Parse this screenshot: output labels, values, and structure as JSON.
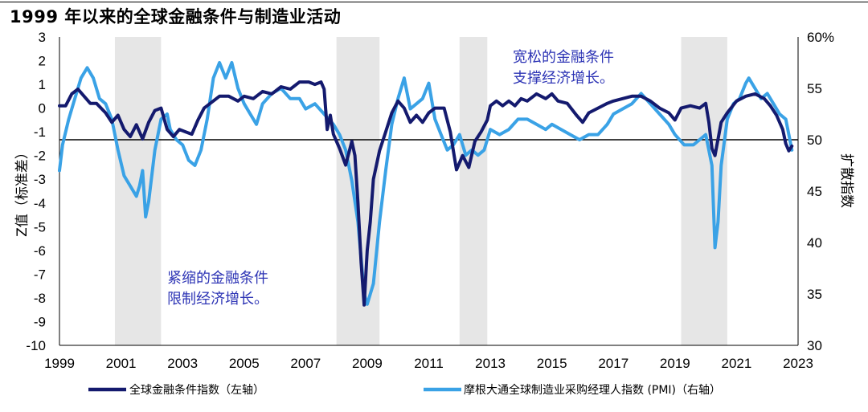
{
  "chart_data": {
    "type": "line",
    "title": "1999 年以来的全球金融条件与制造业活动",
    "x_ticks": [
      "1999",
      "2001",
      "2003",
      "2005",
      "2007",
      "2009",
      "2011",
      "2013",
      "2015",
      "2017",
      "2019",
      "2021",
      "2023"
    ],
    "x_range": [
      1999.0,
      2023.0
    ],
    "y_left": {
      "label": "Z值（标准差）",
      "range": [
        -10,
        3
      ],
      "ticks": [
        "3",
        "2",
        "1",
        "0",
        "-1",
        "-2",
        "-3",
        "-4",
        "-5",
        "-6",
        "-7",
        "-8",
        "-9",
        "-10"
      ]
    },
    "y_right": {
      "label": "扩散指数",
      "range": [
        30,
        60
      ],
      "ticks": [
        "60%",
        "55",
        "50",
        "45",
        "40",
        "35",
        "30"
      ]
    },
    "reference_line": {
      "axis": "right",
      "value": 50
    },
    "recession_shading": [
      [
        2000.8,
        2002.3
      ],
      [
        2008.0,
        2009.4
      ],
      [
        2012.0,
        2012.9
      ],
      [
        2019.2,
        2020.7
      ]
    ],
    "annotations": [
      {
        "lines": [
          "宽松的金融条件",
          "支撑经济增长。"
        ]
      },
      {
        "lines": [
          "紧缩的金融条件",
          "限制经济增长。"
        ]
      }
    ],
    "legend": {
      "placement": "bottom"
    },
    "series": [
      {
        "name": "全球金融条件指数（左轴）",
        "axis": "left",
        "color": "#141a6e",
        "points": [
          [
            1999.0,
            0.1
          ],
          [
            1999.2,
            0.1
          ],
          [
            1999.4,
            0.6
          ],
          [
            1999.6,
            0.8
          ],
          [
            1999.8,
            0.5
          ],
          [
            2000.0,
            0.2
          ],
          [
            2000.2,
            0.2
          ],
          [
            2000.5,
            -0.2
          ],
          [
            2000.7,
            -0.6
          ],
          [
            2000.9,
            -0.3
          ],
          [
            2001.1,
            -0.9
          ],
          [
            2001.3,
            -1.2
          ],
          [
            2001.5,
            -0.7
          ],
          [
            2001.7,
            -1.3
          ],
          [
            2001.9,
            -0.6
          ],
          [
            2002.1,
            -0.1
          ],
          [
            2002.3,
            0.0
          ],
          [
            2002.5,
            -0.9
          ],
          [
            2002.7,
            -1.2
          ],
          [
            2002.9,
            -0.9
          ],
          [
            2003.1,
            -1.0
          ],
          [
            2003.3,
            -1.1
          ],
          [
            2003.5,
            -0.5
          ],
          [
            2003.7,
            0.0
          ],
          [
            2003.9,
            0.2
          ],
          [
            2004.2,
            0.5
          ],
          [
            2004.5,
            0.5
          ],
          [
            2004.8,
            0.3
          ],
          [
            2005.0,
            0.5
          ],
          [
            2005.3,
            0.4
          ],
          [
            2005.6,
            0.7
          ],
          [
            2005.9,
            0.6
          ],
          [
            2006.2,
            0.9
          ],
          [
            2006.5,
            0.8
          ],
          [
            2006.8,
            1.1
          ],
          [
            2007.1,
            1.1
          ],
          [
            2007.3,
            1.0
          ],
          [
            2007.5,
            1.1
          ],
          [
            2007.6,
            0.8
          ],
          [
            2007.7,
            -0.9
          ],
          [
            2007.8,
            -0.3
          ],
          [
            2007.9,
            -1.1
          ],
          [
            2008.1,
            -1.7
          ],
          [
            2008.3,
            -2.4
          ],
          [
            2008.5,
            -1.4
          ],
          [
            2008.6,
            -2.0
          ],
          [
            2008.7,
            -4.0
          ],
          [
            2008.8,
            -6.5
          ],
          [
            2008.9,
            -8.3
          ],
          [
            2009.0,
            -6.0
          ],
          [
            2009.1,
            -4.8
          ],
          [
            2009.2,
            -3.0
          ],
          [
            2009.4,
            -1.8
          ],
          [
            2009.6,
            -1.0
          ],
          [
            2009.8,
            -0.2
          ],
          [
            2010.0,
            0.3
          ],
          [
            2010.2,
            0.0
          ],
          [
            2010.4,
            -0.6
          ],
          [
            2010.6,
            -0.3
          ],
          [
            2010.8,
            -0.6
          ],
          [
            2011.0,
            -0.2
          ],
          [
            2011.2,
            0.0
          ],
          [
            2011.5,
            0.0
          ],
          [
            2011.7,
            -1.0
          ],
          [
            2011.8,
            -1.8
          ],
          [
            2011.9,
            -2.6
          ],
          [
            2012.1,
            -2.0
          ],
          [
            2012.3,
            -2.5
          ],
          [
            2012.5,
            -1.4
          ],
          [
            2012.7,
            -1.0
          ],
          [
            2012.9,
            -0.5
          ],
          [
            2013.0,
            0.1
          ],
          [
            2013.2,
            0.3
          ],
          [
            2013.4,
            0.1
          ],
          [
            2013.6,
            0.3
          ],
          [
            2013.8,
            0.1
          ],
          [
            2014.0,
            0.4
          ],
          [
            2014.2,
            0.3
          ],
          [
            2014.5,
            0.6
          ],
          [
            2014.8,
            0.4
          ],
          [
            2015.0,
            0.6
          ],
          [
            2015.2,
            0.3
          ],
          [
            2015.5,
            0.2
          ],
          [
            2015.8,
            -0.3
          ],
          [
            2016.0,
            -0.6
          ],
          [
            2016.2,
            -0.2
          ],
          [
            2016.5,
            0.0
          ],
          [
            2016.8,
            0.2
          ],
          [
            2017.0,
            0.3
          ],
          [
            2017.3,
            0.4
          ],
          [
            2017.6,
            0.5
          ],
          [
            2017.9,
            0.5
          ],
          [
            2018.2,
            0.3
          ],
          [
            2018.5,
            0.0
          ],
          [
            2018.8,
            -0.2
          ],
          [
            2019.0,
            -0.5
          ],
          [
            2019.2,
            0.0
          ],
          [
            2019.5,
            0.1
          ],
          [
            2019.8,
            0.0
          ],
          [
            2020.0,
            0.2
          ],
          [
            2020.1,
            -0.6
          ],
          [
            2020.2,
            -1.7
          ],
          [
            2020.3,
            -2.0
          ],
          [
            2020.5,
            -0.6
          ],
          [
            2020.7,
            -0.2
          ],
          [
            2021.0,
            0.3
          ],
          [
            2021.3,
            0.5
          ],
          [
            2021.6,
            0.6
          ],
          [
            2021.9,
            0.4
          ],
          [
            2022.1,
            0.1
          ],
          [
            2022.3,
            -0.3
          ],
          [
            2022.5,
            -0.9
          ],
          [
            2022.6,
            -1.5
          ],
          [
            2022.7,
            -1.8
          ],
          [
            2022.8,
            -1.6
          ]
        ]
      },
      {
        "name": "摩根大通全球制造业采购经理人指数 (PMI)（右轴）",
        "axis": "right",
        "color": "#3aa2e6",
        "points": [
          [
            1999.0,
            47.0
          ],
          [
            1999.1,
            49.5
          ],
          [
            1999.3,
            52.0
          ],
          [
            1999.5,
            54.0
          ],
          [
            1999.7,
            56.0
          ],
          [
            1999.9,
            57.0
          ],
          [
            2000.1,
            56.0
          ],
          [
            2000.3,
            54.0
          ],
          [
            2000.5,
            53.5
          ],
          [
            2000.7,
            52.0
          ],
          [
            2000.9,
            49.0
          ],
          [
            2001.1,
            46.5
          ],
          [
            2001.3,
            45.5
          ],
          [
            2001.5,
            44.5
          ],
          [
            2001.6,
            45.5
          ],
          [
            2001.7,
            47.0
          ],
          [
            2001.8,
            42.5
          ],
          [
            2001.9,
            44.0
          ],
          [
            2002.1,
            49.0
          ],
          [
            2002.3,
            52.0
          ],
          [
            2002.5,
            52.5
          ],
          [
            2002.6,
            51.0
          ],
          [
            2002.8,
            50.0
          ],
          [
            2003.0,
            49.5
          ],
          [
            2003.2,
            48.0
          ],
          [
            2003.4,
            47.5
          ],
          [
            2003.6,
            49.0
          ],
          [
            2003.8,
            52.0
          ],
          [
            2004.0,
            56.0
          ],
          [
            2004.2,
            57.5
          ],
          [
            2004.4,
            56.0
          ],
          [
            2004.6,
            57.5
          ],
          [
            2004.8,
            55.0
          ],
          [
            2005.0,
            53.5
          ],
          [
            2005.2,
            52.5
          ],
          [
            2005.4,
            51.5
          ],
          [
            2005.6,
            53.5
          ],
          [
            2005.9,
            54.5
          ],
          [
            2006.2,
            55.0
          ],
          [
            2006.5,
            54.0
          ],
          [
            2006.8,
            54.0
          ],
          [
            2007.0,
            53.0
          ],
          [
            2007.3,
            53.5
          ],
          [
            2007.6,
            52.5
          ],
          [
            2007.9,
            51.5
          ],
          [
            2008.1,
            50.5
          ],
          [
            2008.3,
            49.0
          ],
          [
            2008.5,
            46.0
          ],
          [
            2008.7,
            42.0
          ],
          [
            2008.9,
            35.0
          ],
          [
            2009.0,
            34.0
          ],
          [
            2009.2,
            36.0
          ],
          [
            2009.4,
            42.0
          ],
          [
            2009.6,
            47.0
          ],
          [
            2009.8,
            51.5
          ],
          [
            2010.0,
            54.0
          ],
          [
            2010.2,
            56.0
          ],
          [
            2010.4,
            53.0
          ],
          [
            2010.6,
            53.5
          ],
          [
            2010.8,
            54.0
          ],
          [
            2011.0,
            55.5
          ],
          [
            2011.2,
            52.0
          ],
          [
            2011.4,
            50.5
          ],
          [
            2011.6,
            49.0
          ],
          [
            2011.8,
            49.5
          ],
          [
            2012.0,
            50.5
          ],
          [
            2012.2,
            48.5
          ],
          [
            2012.4,
            49.0
          ],
          [
            2012.6,
            48.5
          ],
          [
            2012.8,
            49.0
          ],
          [
            2013.0,
            51.0
          ],
          [
            2013.3,
            50.5
          ],
          [
            2013.6,
            51.0
          ],
          [
            2013.9,
            52.0
          ],
          [
            2014.2,
            52.0
          ],
          [
            2014.5,
            51.5
          ],
          [
            2014.8,
            51.0
          ],
          [
            2015.0,
            51.5
          ],
          [
            2015.3,
            51.0
          ],
          [
            2015.6,
            50.5
          ],
          [
            2015.9,
            50.0
          ],
          [
            2016.2,
            50.5
          ],
          [
            2016.5,
            50.5
          ],
          [
            2016.8,
            51.5
          ],
          [
            2017.0,
            52.5
          ],
          [
            2017.3,
            53.0
          ],
          [
            2017.6,
            53.5
          ],
          [
            2017.9,
            54.5
          ],
          [
            2018.2,
            53.5
          ],
          [
            2018.5,
            52.5
          ],
          [
            2018.8,
            51.5
          ],
          [
            2019.0,
            50.5
          ],
          [
            2019.3,
            49.5
          ],
          [
            2019.6,
            49.5
          ],
          [
            2020.0,
            50.5
          ],
          [
            2020.2,
            47.5
          ],
          [
            2020.3,
            39.5
          ],
          [
            2020.4,
            42.0
          ],
          [
            2020.5,
            47.5
          ],
          [
            2020.7,
            52.0
          ],
          [
            2020.9,
            53.5
          ],
          [
            2021.1,
            54.0
          ],
          [
            2021.3,
            55.5
          ],
          [
            2021.4,
            56.0
          ],
          [
            2021.6,
            55.0
          ],
          [
            2021.8,
            54.0
          ],
          [
            2022.0,
            54.5
          ],
          [
            2022.2,
            53.5
          ],
          [
            2022.4,
            52.5
          ],
          [
            2022.6,
            52.0
          ],
          [
            2022.7,
            50.5
          ],
          [
            2022.8,
            49.0
          ]
        ]
      }
    ]
  }
}
